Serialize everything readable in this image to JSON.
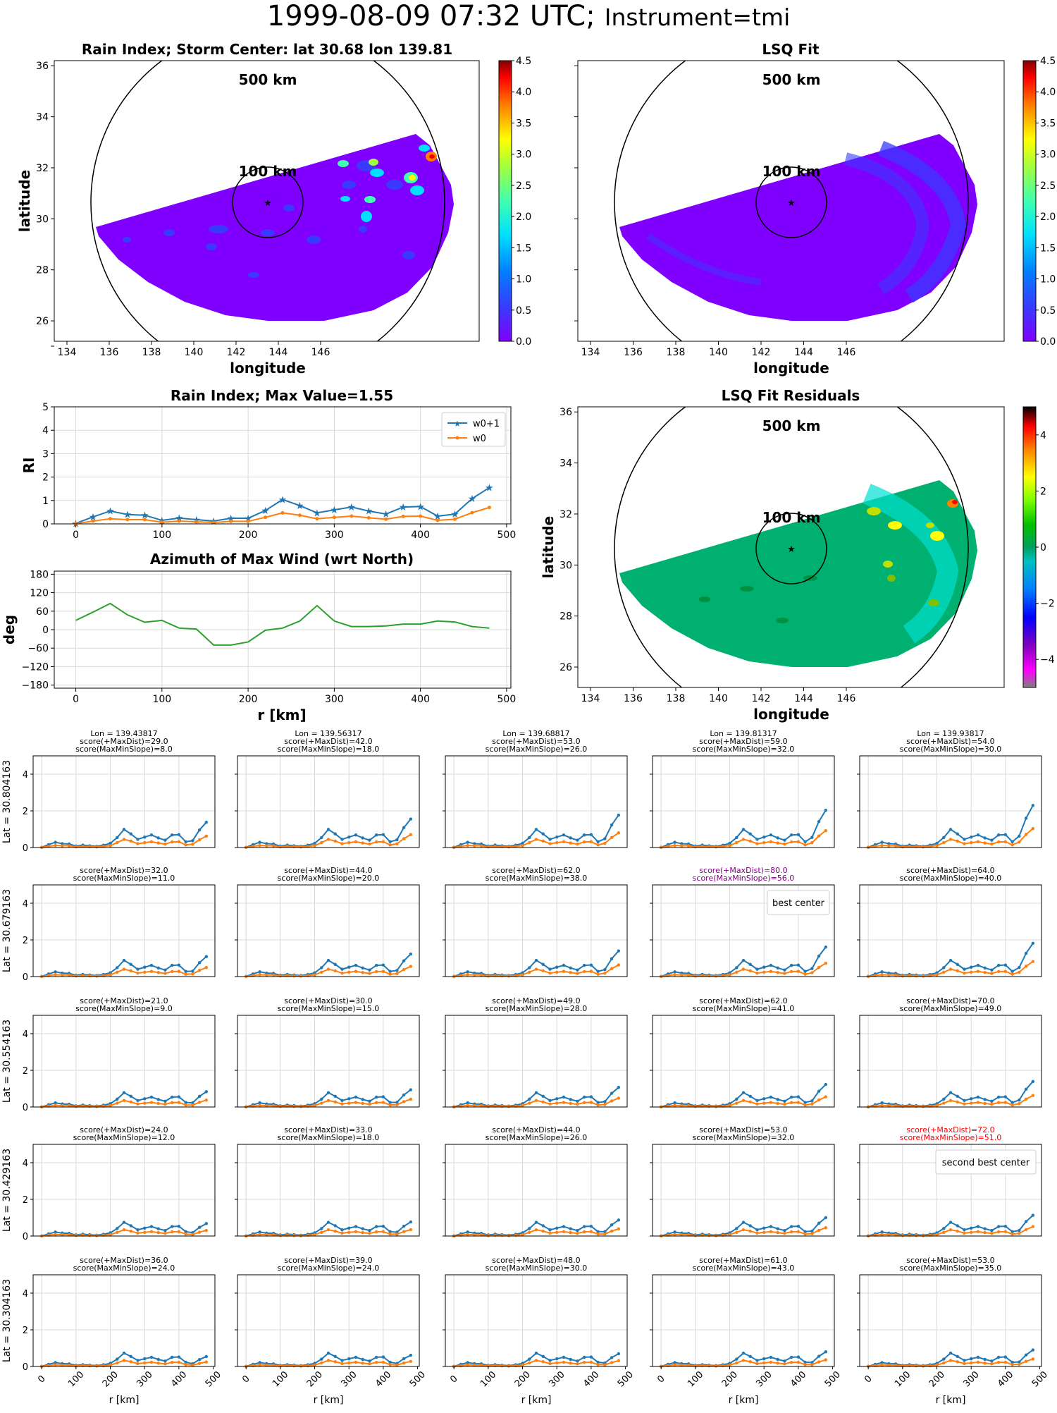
{
  "figure": {
    "title_date": "1999-08-09 07:32 UTC;",
    "title_instrument": "Instrument=tmi"
  },
  "maps": {
    "rain_index_title": "Rain Index; Storm Center: lat 30.68 lon 139.81",
    "lsq_fit_title": "LSQ Fit",
    "residuals_title": "LSQ Fit Residuals",
    "xlabel": "longitude",
    "ylabel": "latitude",
    "ring_outer_label": "500 km",
    "ring_inner_label": "100 km",
    "lon_ticks": [
      "134",
      "136",
      "138",
      "140",
      "142",
      "144",
      "146"
    ],
    "lat_ticks": [
      "26",
      "28",
      "30",
      "32",
      "34",
      "36"
    ],
    "colorbar_ticks": [
      "0.0",
      "0.5",
      "1.0",
      "1.5",
      "2.0",
      "2.5",
      "3.0",
      "3.5",
      "4.0",
      "4.5"
    ],
    "residual_colorbar_ticks": [
      "−4",
      "−2",
      "0",
      "2",
      "4"
    ],
    "storm_center": {
      "lat": 30.68,
      "lon": 139.81
    },
    "colormap": "jet",
    "residual_colormap": "nipy_spectral"
  },
  "chart_data": [
    {
      "type": "line",
      "id": "rain-index-profile",
      "title": "Rain Index; Max Value=1.55",
      "xlabel": "",
      "ylabel": "RI",
      "xlim": [
        -25,
        505
      ],
      "ylim": [
        0,
        5
      ],
      "x_ticks": [
        "0",
        "100",
        "200",
        "300",
        "400",
        "500"
      ],
      "y_ticks": [
        "0",
        "1",
        "2",
        "3",
        "4",
        "5"
      ],
      "legend_position": "top-right",
      "grid": true,
      "x": [
        0,
        20,
        40,
        60,
        80,
        100,
        120,
        140,
        160,
        180,
        200,
        220,
        240,
        260,
        280,
        300,
        320,
        340,
        360,
        380,
        400,
        420,
        440,
        460,
        480
      ],
      "series": [
        {
          "name": "w0+1",
          "color": "#1f77b4",
          "marker": "star",
          "values": [
            0.02,
            0.3,
            0.55,
            0.4,
            0.37,
            0.15,
            0.25,
            0.18,
            0.12,
            0.24,
            0.24,
            0.57,
            1.04,
            0.78,
            0.47,
            0.6,
            0.72,
            0.55,
            0.42,
            0.72,
            0.74,
            0.33,
            0.42,
            1.08,
            1.55
          ]
        },
        {
          "name": "w0",
          "color": "#ff7f0e",
          "marker": "dot",
          "values": [
            0.01,
            0.12,
            0.22,
            0.18,
            0.18,
            0.07,
            0.12,
            0.09,
            0.06,
            0.11,
            0.11,
            0.28,
            0.47,
            0.37,
            0.22,
            0.28,
            0.33,
            0.26,
            0.2,
            0.32,
            0.33,
            0.15,
            0.2,
            0.48,
            0.7
          ]
        }
      ]
    },
    {
      "type": "line",
      "id": "azimuth-profile",
      "title": "Azimuth of Max Wind (wrt North)",
      "xlabel": "r [km]",
      "ylabel": "deg",
      "xlim": [
        -25,
        505
      ],
      "ylim": [
        -190,
        190
      ],
      "x_ticks": [
        "0",
        "100",
        "200",
        "300",
        "400",
        "500"
      ],
      "y_ticks": [
        "180",
        "120",
        "60",
        "0",
        "−60",
        "−120",
        "−180"
      ],
      "grid": true,
      "x": [
        0,
        20,
        40,
        60,
        80,
        100,
        120,
        140,
        160,
        180,
        200,
        220,
        240,
        260,
        280,
        300,
        320,
        340,
        360,
        380,
        400,
        420,
        440,
        460,
        480
      ],
      "series": [
        {
          "name": "",
          "color": "#2ca02c",
          "values": [
            30,
            57,
            85,
            48,
            24,
            30,
            5,
            2,
            -50,
            -50,
            -40,
            -2,
            5,
            28,
            78,
            28,
            10,
            10,
            12,
            18,
            18,
            28,
            25,
            10,
            5
          ]
        }
      ]
    }
  ],
  "grid_panels": {
    "xlabel": "r [km]",
    "x_ticks": [
      "0",
      "100",
      "200",
      "300",
      "400",
      "500"
    ],
    "y_ticks": [
      "0",
      "2",
      "4"
    ],
    "ylim": [
      0,
      5
    ],
    "lons": [
      "Lon = 139.43817",
      "Lon = 139.56317",
      "Lon = 139.68817",
      "Lon = 139.81317",
      "Lon = 139.93817"
    ],
    "lat_labels": [
      "Lat = 30.804163",
      "Lat = 30.679163",
      "Lat = 30.554163",
      "Lat = 30.429163",
      "Lat = 30.304163"
    ],
    "scores": [
      [
        [
          "score(+MaxDist)=29.0",
          "score(MaxMinSlope)=8.0"
        ],
        [
          "score(+MaxDist)=42.0",
          "score(MaxMinSlope)=18.0"
        ],
        [
          "score(+MaxDist)=53.0",
          "score(MaxMinSlope)=26.0"
        ],
        [
          "score(+MaxDist)=59.0",
          "score(MaxMinSlope)=32.0"
        ],
        [
          "score(+MaxDist)=54.0",
          "score(MaxMinSlope)=30.0"
        ]
      ],
      [
        [
          "score(+MaxDist)=32.0",
          "score(MaxMinSlope)=11.0"
        ],
        [
          "score(+MaxDist)=44.0",
          "score(MaxMinSlope)=20.0"
        ],
        [
          "score(+MaxDist)=62.0",
          "score(MaxMinSlope)=38.0"
        ],
        [
          "score(+MaxDist)=80.0",
          "score(MaxMinSlope)=56.0"
        ],
        [
          "score(+MaxDist)=64.0",
          "score(MaxMinSlope)=40.0"
        ]
      ],
      [
        [
          "score(+MaxDist)=21.0",
          "score(MaxMinSlope)=9.0"
        ],
        [
          "score(+MaxDist)=30.0",
          "score(MaxMinSlope)=15.0"
        ],
        [
          "score(+MaxDist)=49.0",
          "score(MaxMinSlope)=28.0"
        ],
        [
          "score(+MaxDist)=62.0",
          "score(MaxMinSlope)=41.0"
        ],
        [
          "score(+MaxDist)=70.0",
          "score(MaxMinSlope)=49.0"
        ]
      ],
      [
        [
          "score(+MaxDist)=24.0",
          "score(MaxMinSlope)=12.0"
        ],
        [
          "score(+MaxDist)=33.0",
          "score(MaxMinSlope)=18.0"
        ],
        [
          "score(+MaxDist)=44.0",
          "score(MaxMinSlope)=26.0"
        ],
        [
          "score(+MaxDist)=53.0",
          "score(MaxMinSlope)=32.0"
        ],
        [
          "score(+MaxDist)=72.0",
          "score(MaxMinSlope)=51.0"
        ]
      ],
      [
        [
          "score(+MaxDist)=36.0",
          "score(MaxMinSlope)=24.0"
        ],
        [
          "score(+MaxDist)=39.0",
          "score(MaxMinSlope)=24.0"
        ],
        [
          "score(+MaxDist)=48.0",
          "score(MaxMinSlope)=30.0"
        ],
        [
          "score(+MaxDist)=61.0",
          "score(MaxMinSlope)=43.0"
        ],
        [
          "score(+MaxDist)=53.0",
          "score(MaxMinSlope)=35.0"
        ]
      ]
    ],
    "best": {
      "row": 1,
      "col": 3,
      "label": "best center",
      "color": "#800080"
    },
    "second_best": {
      "row": 3,
      "col": 4,
      "label": "second best center",
      "color": "#ff0000"
    },
    "series_colors": {
      "w0+1": "#1f77b4",
      "w0": "#ff7f0e"
    }
  }
}
